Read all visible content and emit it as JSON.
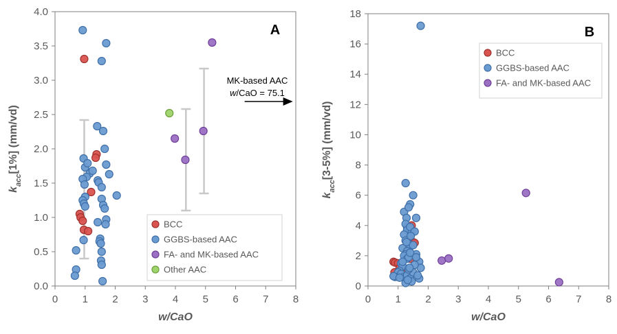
{
  "colors": {
    "BCC": "#d9534f",
    "GGBS": "#6a9bd1",
    "FA_MK": "#9b6fc4",
    "Other": "#9fd36b",
    "edge_BCC": "#a0302c",
    "edge_GGBS": "#3f6fa8",
    "edge_FA_MK": "#6e3f99",
    "edge_Other": "#6b9f3a",
    "errorbar": "#c8c8c8",
    "axis": "#7f7f7f"
  },
  "chart_data": [
    {
      "type": "scatter",
      "panel": "A",
      "xlabel": "w/CaO",
      "xlabel_italic": "w",
      "xlabel_rest": "/CaO",
      "ylabel_k": "k",
      "ylabel_sub": "acc",
      "ylabel_rest": "[1%] (mm/vd)",
      "xlim": [
        0,
        8
      ],
      "ylim": [
        0,
        4
      ],
      "xticks": [
        "0",
        "1",
        "2",
        "3",
        "4",
        "5",
        "6",
        "7",
        "8"
      ],
      "yticks": [
        "0.0",
        "0.5",
        "1.0",
        "1.5",
        "2.0",
        "2.5",
        "3.0",
        "3.5",
        "4.0"
      ],
      "grid": false,
      "legend_position": "bottom-right",
      "annotation_line1": "MK-based AAC",
      "annotation_line2_italic": "w",
      "annotation_line2_rest": "/CaO = 75.1",
      "annotation_arrow": {
        "x1": 6.3,
        "x2": 7.9,
        "y": 2.69
      },
      "legend": [
        "BCC",
        "GGBS-based AAC",
        "FA- and MK-based AAC",
        "Other AAC"
      ],
      "error_bars": [
        {
          "x": 0.97,
          "y": 1.41,
          "low": 0.4,
          "high": 2.42
        },
        {
          "x": 4.35,
          "y": 1.84,
          "low": 1.1,
          "high": 2.58
        },
        {
          "x": 4.95,
          "y": 2.26,
          "low": 1.35,
          "high": 3.17
        }
      ],
      "series": [
        {
          "name": "BCC",
          "color_key": "BCC",
          "x": [
            0.97,
            0.82,
            0.85,
            0.92,
            0.96,
            1.1,
            1.38,
            1.35,
            1.2
          ],
          "y": [
            3.31,
            1.05,
            1.0,
            0.95,
            0.82,
            0.8,
            1.92,
            1.87,
            1.37
          ]
        },
        {
          "name": "GGBS-based AAC",
          "color_key": "GGBS",
          "x": [
            0.92,
            1.7,
            1.55,
            0.95,
            1.0,
            1.08,
            1.15,
            1.05,
            1.25,
            0.92,
            0.98,
            1.0,
            0.92,
            0.96,
            1.0,
            0.95,
            0.7,
            0.7,
            0.66,
            1.4,
            1.6,
            1.65,
            1.7,
            1.8,
            1.42,
            1.45,
            1.55,
            1.55,
            1.6,
            1.65,
            1.7,
            1.68,
            1.42,
            1.5,
            1.48,
            1.52,
            1.55,
            1.53,
            1.55,
            1.58,
            2.05
          ],
          "y": [
            3.73,
            3.54,
            3.28,
            1.86,
            1.73,
            1.79,
            1.64,
            1.59,
            1.68,
            1.56,
            1.48,
            1.3,
            1.25,
            1.2,
            1.16,
            0.67,
            0.52,
            0.24,
            0.15,
            2.33,
            2.26,
            2.0,
            1.77,
            1.63,
            1.54,
            1.51,
            1.44,
            1.27,
            1.18,
            1.13,
            0.97,
            0.9,
            0.93,
            0.69,
            0.65,
            0.62,
            0.5,
            0.37,
            0.31,
            0.07,
            1.32
          ]
        },
        {
          "name": "FA- and MK-based AAC",
          "color_key": "FA_MK",
          "x": [
            5.22,
            3.98,
            4.33,
            4.93
          ],
          "y": [
            3.55,
            2.15,
            1.84,
            2.26
          ]
        },
        {
          "name": "Other AAC",
          "color_key": "Other",
          "x": [
            3.8
          ],
          "y": [
            2.52
          ]
        }
      ]
    },
    {
      "type": "scatter",
      "panel": "B",
      "xlabel": "w/CaO",
      "xlabel_italic": "w",
      "xlabel_rest": "/CaO",
      "ylabel_k": "k",
      "ylabel_sub": "acc",
      "ylabel_rest": "[3-5%] (mm/vd)",
      "xlim": [
        0,
        8
      ],
      "ylim": [
        0,
        18
      ],
      "xticks": [
        "0",
        "1",
        "2",
        "3",
        "4",
        "5",
        "6",
        "7",
        "8"
      ],
      "yticks": [
        "0",
        "2",
        "4",
        "6",
        "8",
        "10",
        "12",
        "14",
        "16",
        "18"
      ],
      "grid": false,
      "legend_position": "top-center",
      "legend": [
        "BCC",
        "GGBS-based AAC",
        "FA- and MK-based AAC"
      ],
      "series": [
        {
          "name": "BCC",
          "color_key": "BCC",
          "x": [
            0.85,
            0.9,
            0.88,
            1.0,
            1.05,
            1.25,
            1.3,
            1.35,
            1.4,
            1.45,
            1.5,
            1.55,
            1.4,
            1.3,
            1.2,
            1.1,
            1.45,
            1.35
          ],
          "y": [
            1.6,
            1.55,
            0.9,
            1.5,
            1.2,
            1.1,
            2.0,
            2.5,
            3.0,
            3.5,
            2.9,
            2.85,
            1.8,
            1.0,
            0.8,
            0.7,
            4.0,
            3.2
          ],
          "note": "BCC points partly hidden under GGBS cluster"
        },
        {
          "name": "GGBS-based AAC",
          "color_key": "GGBS",
          "x": [
            1.75,
            1.25,
            1.2,
            1.28,
            1.4,
            1.35,
            1.6,
            1.5,
            1.3,
            1.25,
            1.3,
            1.45,
            1.4,
            1.55,
            1.6,
            1.7,
            1.75,
            1.2,
            1.25,
            1.15,
            1.35,
            1.4,
            1.5,
            1.3,
            1.25,
            1.2,
            1.3,
            1.35,
            1.4,
            1.1,
            1.15,
            1.05,
            1.0,
            1.1,
            1.2,
            1.3,
            1.4,
            1.5,
            1.6,
            1.7,
            1.65,
            1.35,
            1.45,
            1.55,
            1.25,
            0.9,
            0.85,
            1.05,
            1.15,
            1.28,
            1.38,
            1.32,
            1.42
          ],
          "y": [
            17.2,
            6.8,
            4.9,
            4.5,
            5.4,
            5.2,
            4.5,
            6.0,
            3.9,
            4.1,
            3.7,
            3.5,
            3.9,
            3.6,
            2.1,
            1.6,
            1.2,
            3.4,
            3.0,
            2.5,
            2.8,
            2.6,
            2.7,
            2.3,
            2.1,
            2.0,
            1.8,
            1.9,
            2.2,
            1.5,
            1.3,
            1.0,
            0.9,
            0.8,
            0.6,
            0.7,
            0.5,
            0.9,
            1.9,
            0.5,
            0.7,
            1.1,
            0.3,
            1.4,
            0.2,
            0.6,
            0.65,
            0.55,
            1.6,
            2.9,
            1.2,
            0.4,
            3.3
          ]
        },
        {
          "name": "FA- and MK-based AAC",
          "color_key": "FA_MK",
          "x": [
            5.25,
            2.45,
            2.68,
            6.35
          ],
          "y": [
            6.15,
            1.68,
            1.82,
            0.25
          ]
        }
      ]
    }
  ]
}
